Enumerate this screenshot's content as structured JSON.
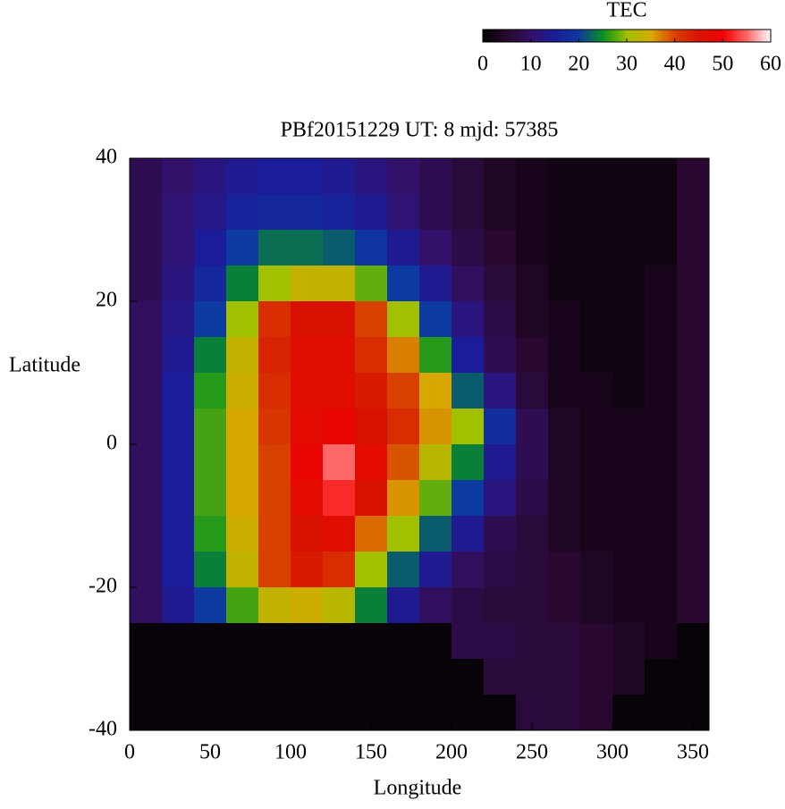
{
  "chart_data": {
    "type": "heatmap",
    "title": "PBf20151229  UT: 8  mjd: 57385",
    "xlabel": "Longitude",
    "ylabel": "Latitude",
    "colorbar_label": "TEC",
    "x": [
      10,
      30,
      50,
      70,
      90,
      110,
      130,
      150,
      170,
      190,
      210,
      230,
      250,
      270,
      290,
      310,
      330,
      350
    ],
    "y": [
      37.5,
      32.5,
      27.5,
      22.5,
      17.5,
      12.5,
      7.5,
      2.5,
      -2.5,
      -7.5,
      -12.5,
      -17.5,
      -22.5,
      -27.5,
      -32.5,
      -37.5
    ],
    "values": [
      [
        8,
        10,
        12,
        14,
        15,
        15,
        14,
        12,
        10,
        8,
        6,
        4,
        3,
        2,
        2,
        2,
        2,
        5
      ],
      [
        8,
        11,
        13,
        16,
        17,
        17,
        16,
        14,
        11,
        8,
        6,
        4,
        3,
        2,
        2,
        2,
        2,
        5
      ],
      [
        8,
        11,
        15,
        20,
        23,
        23,
        22,
        19,
        14,
        10,
        7,
        5,
        3,
        2,
        2,
        2,
        2,
        5
      ],
      [
        8,
        12,
        17,
        24,
        30,
        33,
        33,
        28,
        20,
        14,
        9,
        6,
        4,
        2,
        2,
        2,
        3,
        5
      ],
      [
        9,
        13,
        20,
        30,
        42,
        45,
        45,
        40,
        30,
        20,
        12,
        7,
        4,
        3,
        2,
        2,
        3,
        5
      ],
      [
        9,
        14,
        24,
        33,
        43,
        46,
        46,
        42,
        37,
        26,
        15,
        8,
        5,
        3,
        2,
        2,
        3,
        5
      ],
      [
        9,
        15,
        26,
        34,
        42,
        46,
        46,
        44,
        40,
        35,
        22,
        12,
        6,
        3,
        3,
        2,
        3,
        5
      ],
      [
        9,
        15,
        27,
        35,
        41,
        47,
        48,
        45,
        42,
        36,
        30,
        18,
        8,
        4,
        3,
        3,
        3,
        5
      ],
      [
        9,
        15,
        27,
        35,
        40,
        48,
        55,
        47,
        39,
        32,
        24,
        14,
        8,
        4,
        3,
        3,
        3,
        5
      ],
      [
        9,
        15,
        27,
        35,
        40,
        47,
        52,
        45,
        36,
        28,
        20,
        12,
        7,
        4,
        3,
        3,
        3,
        5
      ],
      [
        9,
        15,
        26,
        34,
        40,
        45,
        46,
        38,
        30,
        22,
        14,
        8,
        6,
        4,
        3,
        3,
        3,
        5
      ],
      [
        9,
        15,
        24,
        33,
        40,
        44,
        42,
        30,
        22,
        14,
        9,
        7,
        6,
        5,
        4,
        3,
        3,
        5
      ],
      [
        9,
        14,
        20,
        27,
        33,
        34,
        32,
        24,
        14,
        9,
        7,
        6,
        6,
        5,
        4,
        3,
        3,
        5
      ],
      [
        1,
        1,
        1,
        1,
        1,
        1,
        1,
        1,
        1,
        1,
        7,
        7,
        6,
        6,
        5,
        4,
        3,
        1
      ],
      [
        1,
        1,
        1,
        1,
        1,
        1,
        1,
        1,
        1,
        1,
        1,
        6,
        6,
        6,
        5,
        4,
        1,
        1
      ],
      [
        1,
        1,
        1,
        1,
        1,
        1,
        1,
        1,
        1,
        1,
        1,
        1,
        6,
        6,
        5,
        1,
        1,
        1
      ]
    ],
    "colormap": [
      "#000000",
      "#28082e",
      "#33106a",
      "#1a1c9a",
      "#0c3aa0",
      "#089020",
      "#a0c000",
      "#d8a800",
      "#d84000",
      "#d81000",
      "#f40000",
      "#ff6868",
      "#ffffff"
    ],
    "clim": [
      0,
      60
    ],
    "cticks": [
      0,
      10,
      20,
      30,
      40,
      50,
      60
    ],
    "xlim": [
      0,
      360
    ],
    "xticks": [
      0,
      50,
      100,
      150,
      200,
      250,
      300,
      350
    ],
    "ylim": [
      -40,
      40
    ],
    "yticks": [
      -40,
      -20,
      0,
      20,
      40
    ]
  }
}
